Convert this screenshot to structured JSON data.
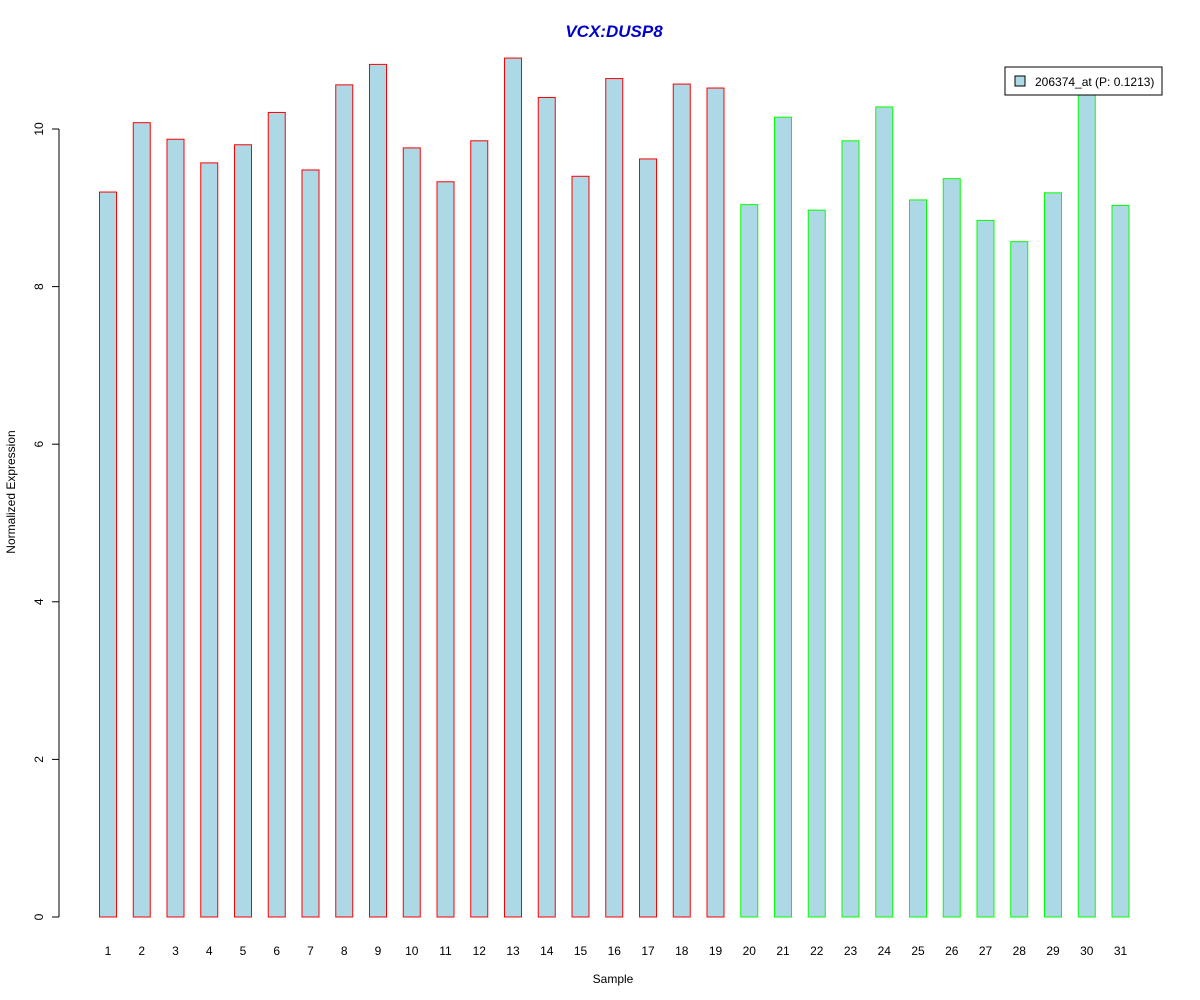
{
  "chart_data": {
    "type": "bar",
    "title": "VCX:DUSP8",
    "xlabel": "Sample",
    "ylabel": "Normalized Expression",
    "ylim": [
      0,
      11
    ],
    "yticks": [
      0,
      2,
      4,
      6,
      8,
      10
    ],
    "grid": false,
    "legend": {
      "position": "top-right",
      "label": "206374_at (P: 0.1213)"
    },
    "categories": [
      "1",
      "2",
      "3",
      "4",
      "5",
      "6",
      "7",
      "8",
      "9",
      "10",
      "11",
      "12",
      "13",
      "14",
      "15",
      "16",
      "17",
      "18",
      "19",
      "20",
      "21",
      "22",
      "23",
      "24",
      "25",
      "26",
      "27",
      "28",
      "29",
      "30",
      "31"
    ],
    "values": [
      9.2,
      10.08,
      9.87,
      9.57,
      9.8,
      10.21,
      9.48,
      10.56,
      10.82,
      9.76,
      9.33,
      9.85,
      10.9,
      10.4,
      9.4,
      10.64,
      9.62,
      10.57,
      10.52,
      9.04,
      10.15,
      8.97,
      9.85,
      10.28,
      9.1,
      9.37,
      8.84,
      8.57,
      9.19,
      10.45,
      9.03
    ],
    "group": [
      "red",
      "red",
      "red",
      "red",
      "red",
      "red",
      "red",
      "red",
      "red",
      "red",
      "red",
      "red",
      "red",
      "red",
      "red",
      "red",
      "red",
      "red",
      "red",
      "green",
      "green",
      "green",
      "green",
      "green",
      "green",
      "green",
      "green",
      "green",
      "green",
      "green",
      "green"
    ]
  },
  "colors": {
    "bar_fill": "#add8e6",
    "red": "#ff0000",
    "green": "#00ff00",
    "title": "#0000cc",
    "axis": "#000000"
  }
}
